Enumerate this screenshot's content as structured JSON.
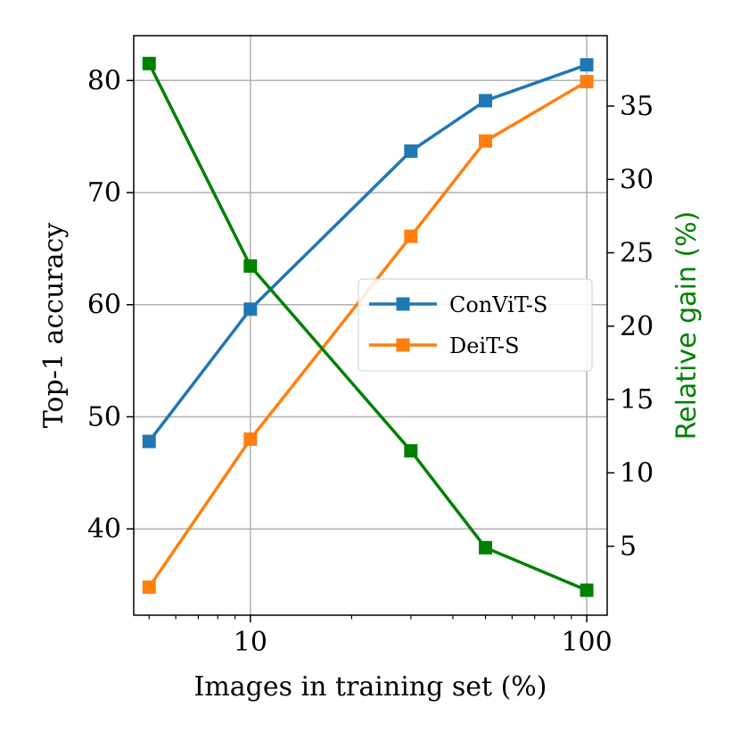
{
  "chart_data": {
    "type": "line",
    "xlabel": "Images in training set (%)",
    "ylabel": "Top-1 accuracy",
    "ylabel_right": "Relative gain (%)",
    "xscale": "log",
    "xlim": [
      4.5,
      115
    ],
    "ylim": [
      32.3,
      84
    ],
    "ylim_right": [
      0.3,
      39.8
    ],
    "x_ticks": [
      10,
      100
    ],
    "x_tick_labels": [
      "10",
      "100"
    ],
    "y_ticks": [
      40,
      50,
      60,
      70,
      80
    ],
    "y_tick_labels": [
      "40",
      "50",
      "60",
      "70",
      "80"
    ],
    "y_right_ticks": [
      5,
      10,
      15,
      20,
      25,
      30,
      35
    ],
    "y_right_tick_labels": [
      "5",
      "10",
      "15",
      "20",
      "25",
      "30",
      "35"
    ],
    "grid": true,
    "legend_position": "center-right",
    "x": [
      5,
      10,
      30,
      50,
      100
    ],
    "series": [
      {
        "name": "ConViT-S",
        "axis": "left",
        "color": "#1f77b4",
        "marker": "square",
        "in_legend": true,
        "values": [
          47.8,
          59.6,
          73.7,
          78.2,
          81.4
        ]
      },
      {
        "name": "DeiT-S",
        "axis": "left",
        "color": "#ff7f0e",
        "marker": "square",
        "in_legend": true,
        "values": [
          34.8,
          48.0,
          66.1,
          74.6,
          79.9
        ]
      },
      {
        "name": "",
        "axis": "right",
        "color": "#008000",
        "marker": "square",
        "in_legend": false,
        "values": [
          37.9,
          24.1,
          11.5,
          4.9,
          2.0
        ]
      }
    ]
  }
}
